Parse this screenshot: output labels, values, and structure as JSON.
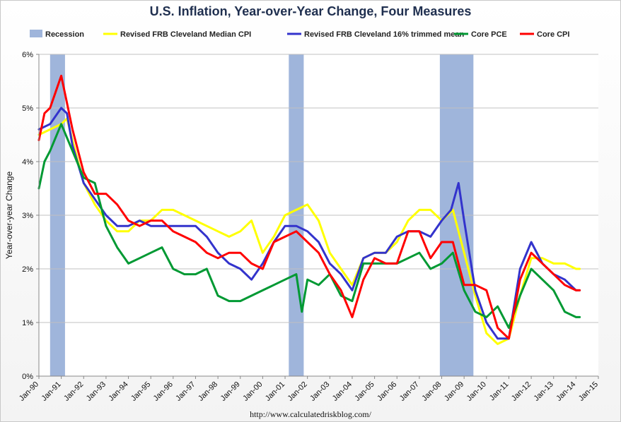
{
  "header": {
    "title": "U.S. Inflation, Year-over-Year Change, Four Measures"
  },
  "footer": {
    "source": "http://www.calculatedriskblog.com/"
  },
  "colors": {
    "recession": "#9fb5db",
    "median_cpi": "#ffff00",
    "trimmed_mean": "#3333cc",
    "core_pce": "#009933",
    "core_cpi": "#ff0000",
    "grid": "#c0c0c0"
  },
  "chart_data": {
    "type": "line",
    "title": "U.S. Inflation, Year-over-Year Change, Four Measures",
    "xlabel": "",
    "ylabel": "Year-over-year Change",
    "xlim": [
      "1990-01",
      "2015-01"
    ],
    "ylim": [
      0,
      6
    ],
    "x_ticks": [
      "Jan-90",
      "Jan-91",
      "Jan-92",
      "Jan-93",
      "Jan-94",
      "Jan-95",
      "Jan-96",
      "Jan-97",
      "Jan-98",
      "Jan-99",
      "Jan-00",
      "Jan-01",
      "Jan-02",
      "Jan-03",
      "Jan-04",
      "Jan-05",
      "Jan-06",
      "Jan-07",
      "Jan-08",
      "Jan-09",
      "Jan-10",
      "Jan-11",
      "Jan-12",
      "Jan-13",
      "Jan-14",
      "Jan-15"
    ],
    "y_ticks": [
      "0%",
      "1%",
      "2%",
      "3%",
      "4%",
      "5%",
      "6%"
    ],
    "grid": "horizontal",
    "legend_position": "top",
    "legend": [
      "Recession",
      "Revised FRB Cleveland Median CPI",
      "Revised FRB Cleveland 16% trimmed mean",
      "Core PCE",
      "Core CPI"
    ],
    "recessions": [
      {
        "start": "1990-07",
        "end": "1991-03"
      },
      {
        "start": "2001-03",
        "end": "2001-11"
      },
      {
        "start": "2007-12",
        "end": "2009-06"
      }
    ],
    "series": [
      {
        "name": "Revised FRB Cleveland Median CPI",
        "color": "#ffff00",
        "points": [
          [
            "1990-01",
            4.5
          ],
          [
            "1990-07",
            4.6
          ],
          [
            "1991-01",
            4.7
          ],
          [
            "1991-04",
            4.8
          ],
          [
            "1991-07",
            4.4
          ],
          [
            "1992-01",
            3.6
          ],
          [
            "1992-07",
            3.2
          ],
          [
            "1993-01",
            2.9
          ],
          [
            "1993-07",
            2.7
          ],
          [
            "1994-01",
            2.7
          ],
          [
            "1994-07",
            2.9
          ],
          [
            "1995-01",
            2.9
          ],
          [
            "1995-07",
            3.1
          ],
          [
            "1996-01",
            3.1
          ],
          [
            "1996-07",
            3.0
          ],
          [
            "1997-01",
            2.9
          ],
          [
            "1997-07",
            2.8
          ],
          [
            "1998-01",
            2.7
          ],
          [
            "1998-07",
            2.6
          ],
          [
            "1999-01",
            2.7
          ],
          [
            "1999-07",
            2.9
          ],
          [
            "2000-01",
            2.3
          ],
          [
            "2000-07",
            2.6
          ],
          [
            "2001-01",
            3.0
          ],
          [
            "2001-07",
            3.1
          ],
          [
            "2002-01",
            3.2
          ],
          [
            "2002-07",
            2.9
          ],
          [
            "2003-01",
            2.3
          ],
          [
            "2003-07",
            2.0
          ],
          [
            "2004-01",
            1.7
          ],
          [
            "2004-07",
            2.2
          ],
          [
            "2005-01",
            2.3
          ],
          [
            "2005-07",
            2.3
          ],
          [
            "2006-01",
            2.5
          ],
          [
            "2006-07",
            2.9
          ],
          [
            "2007-01",
            3.1
          ],
          [
            "2007-07",
            3.1
          ],
          [
            "2008-01",
            2.9
          ],
          [
            "2008-07",
            3.1
          ],
          [
            "2009-01",
            2.3
          ],
          [
            "2009-07",
            1.5
          ],
          [
            "2010-01",
            0.8
          ],
          [
            "2010-07",
            0.6
          ],
          [
            "2011-01",
            0.7
          ],
          [
            "2011-07",
            1.5
          ],
          [
            "2012-01",
            2.2
          ],
          [
            "2012-07",
            2.2
          ],
          [
            "2013-01",
            2.1
          ],
          [
            "2013-07",
            2.1
          ],
          [
            "2014-01",
            2.0
          ],
          [
            "2014-03",
            2.0
          ]
        ]
      },
      {
        "name": "Revised FRB Cleveland 16% trimmed mean",
        "color": "#3333cc",
        "points": [
          [
            "1990-01",
            4.6
          ],
          [
            "1990-07",
            4.7
          ],
          [
            "1991-01",
            5.0
          ],
          [
            "1991-04",
            4.9
          ],
          [
            "1991-07",
            4.3
          ],
          [
            "1992-01",
            3.6
          ],
          [
            "1992-07",
            3.3
          ],
          [
            "1993-01",
            3.0
          ],
          [
            "1993-07",
            2.8
          ],
          [
            "1994-01",
            2.8
          ],
          [
            "1994-07",
            2.9
          ],
          [
            "1995-01",
            2.8
          ],
          [
            "1995-07",
            2.8
          ],
          [
            "1996-01",
            2.8
          ],
          [
            "1996-07",
            2.8
          ],
          [
            "1997-01",
            2.8
          ],
          [
            "1997-07",
            2.6
          ],
          [
            "1998-01",
            2.3
          ],
          [
            "1998-07",
            2.1
          ],
          [
            "1999-01",
            2.0
          ],
          [
            "1999-07",
            1.8
          ],
          [
            "2000-01",
            2.1
          ],
          [
            "2000-07",
            2.5
          ],
          [
            "2001-01",
            2.8
          ],
          [
            "2001-07",
            2.8
          ],
          [
            "2002-01",
            2.7
          ],
          [
            "2002-07",
            2.5
          ],
          [
            "2003-01",
            2.1
          ],
          [
            "2003-07",
            1.9
          ],
          [
            "2004-01",
            1.6
          ],
          [
            "2004-07",
            2.2
          ],
          [
            "2005-01",
            2.3
          ],
          [
            "2005-07",
            2.3
          ],
          [
            "2006-01",
            2.6
          ],
          [
            "2006-07",
            2.7
          ],
          [
            "2007-01",
            2.7
          ],
          [
            "2007-07",
            2.6
          ],
          [
            "2008-01",
            2.9
          ],
          [
            "2008-06",
            3.1
          ],
          [
            "2008-10",
            3.6
          ],
          [
            "2009-01",
            2.9
          ],
          [
            "2009-07",
            1.6
          ],
          [
            "2010-01",
            1.0
          ],
          [
            "2010-07",
            0.7
          ],
          [
            "2011-01",
            0.7
          ],
          [
            "2011-07",
            2.0
          ],
          [
            "2012-01",
            2.5
          ],
          [
            "2012-07",
            2.1
          ],
          [
            "2013-01",
            1.9
          ],
          [
            "2013-07",
            1.8
          ],
          [
            "2014-01",
            1.6
          ],
          [
            "2014-03",
            1.6
          ]
        ]
      },
      {
        "name": "Core PCE",
        "color": "#009933",
        "points": [
          [
            "1990-01",
            3.5
          ],
          [
            "1990-04",
            4.0
          ],
          [
            "1990-07",
            4.2
          ],
          [
            "1991-01",
            4.7
          ],
          [
            "1991-07",
            4.2
          ],
          [
            "1992-01",
            3.7
          ],
          [
            "1992-07",
            3.6
          ],
          [
            "1993-01",
            2.8
          ],
          [
            "1993-07",
            2.4
          ],
          [
            "1994-01",
            2.1
          ],
          [
            "1994-07",
            2.2
          ],
          [
            "1995-01",
            2.3
          ],
          [
            "1995-07",
            2.4
          ],
          [
            "1996-01",
            2.0
          ],
          [
            "1996-07",
            1.9
          ],
          [
            "1997-01",
            1.9
          ],
          [
            "1997-07",
            2.0
          ],
          [
            "1998-01",
            1.5
          ],
          [
            "1998-07",
            1.4
          ],
          [
            "1999-01",
            1.4
          ],
          [
            "1999-07",
            1.5
          ],
          [
            "2000-01",
            1.6
          ],
          [
            "2000-07",
            1.7
          ],
          [
            "2001-01",
            1.8
          ],
          [
            "2001-07",
            1.9
          ],
          [
            "2001-10",
            1.2
          ],
          [
            "2002-01",
            1.8
          ],
          [
            "2002-07",
            1.7
          ],
          [
            "2003-01",
            1.9
          ],
          [
            "2003-07",
            1.5
          ],
          [
            "2004-01",
            1.4
          ],
          [
            "2004-07",
            2.1
          ],
          [
            "2005-01",
            2.1
          ],
          [
            "2005-07",
            2.1
          ],
          [
            "2006-01",
            2.1
          ],
          [
            "2006-07",
            2.2
          ],
          [
            "2007-01",
            2.3
          ],
          [
            "2007-07",
            2.0
          ],
          [
            "2008-01",
            2.1
          ],
          [
            "2008-07",
            2.3
          ],
          [
            "2009-01",
            1.6
          ],
          [
            "2009-07",
            1.2
          ],
          [
            "2010-01",
            1.1
          ],
          [
            "2010-07",
            1.3
          ],
          [
            "2011-01",
            0.9
          ],
          [
            "2011-07",
            1.5
          ],
          [
            "2012-01",
            2.0
          ],
          [
            "2012-07",
            1.8
          ],
          [
            "2013-01",
            1.6
          ],
          [
            "2013-07",
            1.2
          ],
          [
            "2014-01",
            1.1
          ],
          [
            "2014-03",
            1.1
          ]
        ]
      },
      {
        "name": "Core CPI",
        "color": "#ff0000",
        "points": [
          [
            "1990-01",
            4.4
          ],
          [
            "1990-04",
            4.9
          ],
          [
            "1990-07",
            5.0
          ],
          [
            "1990-10",
            5.3
          ],
          [
            "1991-01",
            5.6
          ],
          [
            "1991-04",
            5.1
          ],
          [
            "1991-07",
            4.6
          ],
          [
            "1992-01",
            3.8
          ],
          [
            "1992-07",
            3.4
          ],
          [
            "1993-01",
            3.4
          ],
          [
            "1993-07",
            3.2
          ],
          [
            "1994-01",
            2.9
          ],
          [
            "1994-07",
            2.8
          ],
          [
            "1995-01",
            2.9
          ],
          [
            "1995-07",
            2.9
          ],
          [
            "1996-01",
            2.7
          ],
          [
            "1996-07",
            2.6
          ],
          [
            "1997-01",
            2.5
          ],
          [
            "1997-07",
            2.3
          ],
          [
            "1998-01",
            2.2
          ],
          [
            "1998-07",
            2.3
          ],
          [
            "1999-01",
            2.3
          ],
          [
            "1999-07",
            2.1
          ],
          [
            "2000-01",
            2.0
          ],
          [
            "2000-07",
            2.5
          ],
          [
            "2001-01",
            2.6
          ],
          [
            "2001-07",
            2.7
          ],
          [
            "2002-01",
            2.5
          ],
          [
            "2002-07",
            2.3
          ],
          [
            "2003-01",
            1.9
          ],
          [
            "2003-07",
            1.6
          ],
          [
            "2004-01",
            1.1
          ],
          [
            "2004-07",
            1.8
          ],
          [
            "2005-01",
            2.2
          ],
          [
            "2005-07",
            2.1
          ],
          [
            "2006-01",
            2.1
          ],
          [
            "2006-07",
            2.7
          ],
          [
            "2007-01",
            2.7
          ],
          [
            "2007-07",
            2.2
          ],
          [
            "2008-01",
            2.5
          ],
          [
            "2008-07",
            2.5
          ],
          [
            "2009-01",
            1.7
          ],
          [
            "2009-07",
            1.7
          ],
          [
            "2010-01",
            1.6
          ],
          [
            "2010-07",
            0.9
          ],
          [
            "2011-01",
            0.7
          ],
          [
            "2011-07",
            1.8
          ],
          [
            "2012-01",
            2.3
          ],
          [
            "2012-07",
            2.1
          ],
          [
            "2013-01",
            1.9
          ],
          [
            "2013-07",
            1.7
          ],
          [
            "2014-01",
            1.6
          ],
          [
            "2014-03",
            1.6
          ]
        ]
      }
    ]
  }
}
